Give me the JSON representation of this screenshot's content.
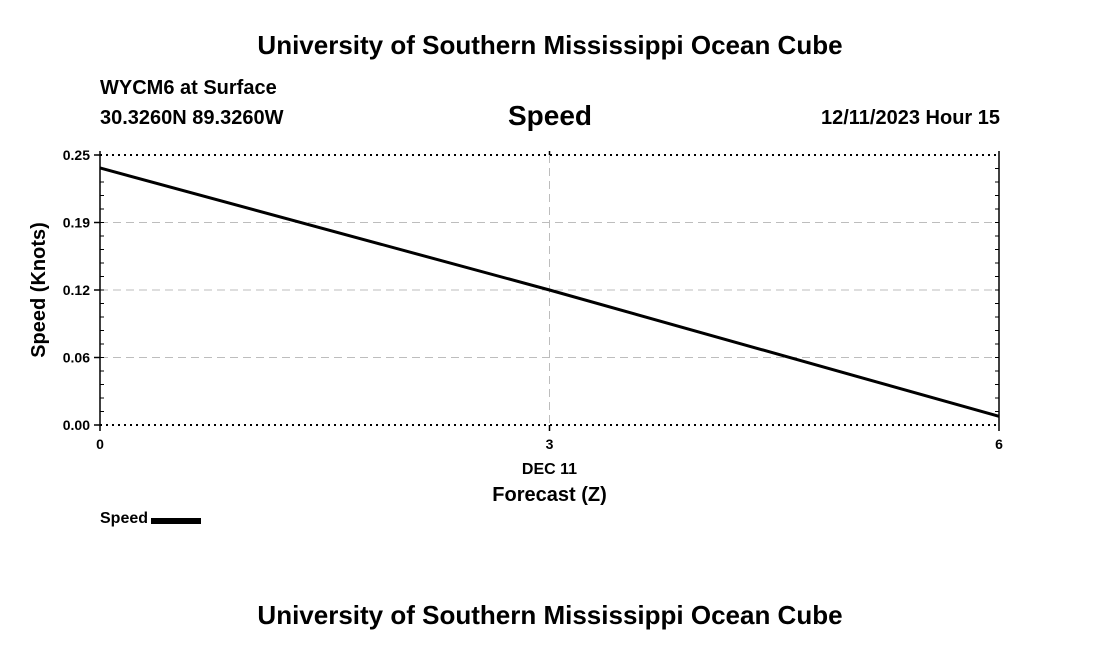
{
  "header": {
    "org_title_top": "University of Southern Mississippi Ocean Cube",
    "station": "WYCM6 at Surface",
    "coords": "30.3260N  89.3260W",
    "datetime": "12/11/2023 Hour 15"
  },
  "footer": {
    "org_title_bottom": "University of Southern Mississippi Ocean Cube"
  },
  "chart_data": {
    "type": "line",
    "title": "Speed",
    "xlabel": "Forecast (Z)",
    "ylabel": "Speed (Knots)",
    "x_date_label": "DEC 11",
    "xlim": [
      0,
      6
    ],
    "ylim": [
      0,
      0.25
    ],
    "x_ticks": [
      0,
      3,
      6
    ],
    "x_tick_labels": [
      "0",
      "3",
      "6"
    ],
    "y_ticks": [
      0,
      0.0625,
      0.125,
      0.1875,
      0.25
    ],
    "y_tick_labels": [
      "0.00",
      "0.06",
      "0.12",
      "0.19",
      "0.25"
    ],
    "grid": true,
    "legend_position": "bottom-left",
    "series": [
      {
        "name": "Speed",
        "color": "#000000",
        "x": [
          0,
          3,
          6
        ],
        "values": [
          0.238,
          0.125,
          0.008
        ]
      }
    ]
  }
}
